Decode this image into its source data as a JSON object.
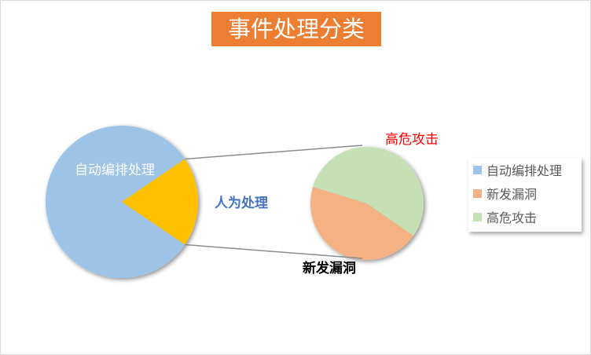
{
  "chart_data": {
    "type": "pie-of-pie",
    "title": "事件处理分类",
    "primary": {
      "categories": [
        "自动编排处理",
        "人为处理"
      ],
      "values": [
        81,
        19
      ],
      "colors": [
        "#9DC3E6",
        "#FFC000"
      ]
    },
    "secondary": {
      "categories": [
        "新发漏洞",
        "高危攻击"
      ],
      "values": [
        45,
        55
      ],
      "colors": [
        "#F4B183",
        "#C5E0B4"
      ]
    },
    "labels": {
      "auto": "自动编排处理",
      "manual": "人为处理",
      "vuln": "新发漏洞",
      "attack": "高危攻击"
    },
    "label_colors": {
      "auto": "#FFFFFF",
      "manual": "#4472C4",
      "vuln": "#000000",
      "attack": "#FF0000"
    },
    "legend": {
      "placement": "right",
      "entries": [
        {
          "label": "自动编排处理",
          "color": "#9DC3E6"
        },
        {
          "label": "新发漏洞",
          "color": "#F4B183"
        },
        {
          "label": "高危攻击",
          "color": "#C5E0B4"
        }
      ]
    }
  }
}
